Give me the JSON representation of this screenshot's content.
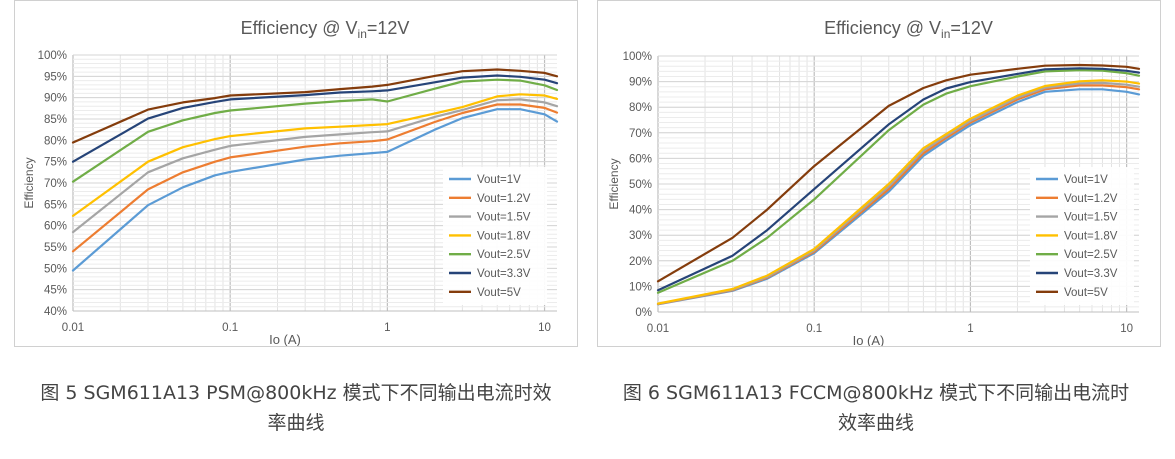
{
  "chart_data": [
    {
      "type": "line",
      "title": "Efficiency @ V",
      "title_subscript": "in",
      "title_suffix": "=12V",
      "xlabel": "Io (A)",
      "ylabel": "Efficiency",
      "x_scale": "log",
      "xlim": [
        0.01,
        12
      ],
      "ylim": [
        40,
        100
      ],
      "y_step": 5,
      "y_tick_suffix": "%",
      "x_tick_labels": [
        "0.01",
        "0.1",
        "1",
        "10"
      ],
      "grid": true,
      "legend_position": "bottom-right",
      "series": [
        {
          "name": "Vout=1V",
          "color": "#5b9bd5",
          "x": [
            0.01,
            0.03,
            0.05,
            0.08,
            0.1,
            0.3,
            0.5,
            0.8,
            1,
            2,
            3,
            5,
            7,
            10,
            12
          ],
          "y": [
            49.5,
            64.8,
            69,
            71.8,
            72.6,
            75.5,
            76.4,
            77,
            77.3,
            82.5,
            85.2,
            87.3,
            87.3,
            86.1,
            84.4
          ]
        },
        {
          "name": "Vout=1.2V",
          "color": "#ed7d31",
          "x": [
            0.01,
            0.03,
            0.05,
            0.08,
            0.1,
            0.3,
            0.5,
            0.8,
            1,
            2,
            3,
            5,
            7,
            10,
            12
          ],
          "y": [
            54,
            68.5,
            72.5,
            75,
            76,
            78.5,
            79.3,
            79.8,
            80.2,
            84.3,
            86.4,
            88.4,
            88.4,
            87.6,
            86.5
          ]
        },
        {
          "name": "Vout=1.5V",
          "color": "#a5a5a5",
          "x": [
            0.01,
            0.03,
            0.05,
            0.08,
            0.1,
            0.3,
            0.5,
            0.8,
            1,
            2,
            3,
            5,
            7,
            10,
            12
          ],
          "y": [
            58.5,
            72.5,
            75.8,
            77.8,
            78.7,
            80.8,
            81.4,
            81.9,
            82.1,
            85.5,
            87.1,
            89.4,
            89.6,
            88.9,
            88
          ]
        },
        {
          "name": "Vout=1.8V",
          "color": "#ffc000",
          "x": [
            0.01,
            0.03,
            0.05,
            0.08,
            0.1,
            0.3,
            0.5,
            0.8,
            1,
            2,
            3,
            5,
            7,
            10,
            12
          ],
          "y": [
            62.3,
            75,
            78.4,
            80.3,
            81,
            82.8,
            83.2,
            83.6,
            83.8,
            86.3,
            87.8,
            90.3,
            90.8,
            90.5,
            89.7
          ]
        },
        {
          "name": "Vout=2.5V",
          "color": "#70ad47",
          "x": [
            0.01,
            0.03,
            0.05,
            0.08,
            0.1,
            0.3,
            0.5,
            0.8,
            1,
            2,
            3,
            5,
            7,
            10,
            12
          ],
          "y": [
            70.3,
            82,
            84.7,
            86.4,
            87,
            88.6,
            89.2,
            89.6,
            89.1,
            92.1,
            93.8,
            94.2,
            94,
            92.9,
            91.8
          ]
        },
        {
          "name": "Vout=3.3V",
          "color": "#264478",
          "x": [
            0.01,
            0.03,
            0.05,
            0.08,
            0.1,
            0.3,
            0.5,
            0.8,
            1,
            2,
            3,
            5,
            7,
            10,
            12
          ],
          "y": [
            75,
            85.1,
            87.6,
            89,
            89.6,
            90.6,
            91.2,
            91.5,
            91.7,
            93.6,
            94.7,
            95.2,
            94.9,
            94.2,
            93.4
          ]
        },
        {
          "name": "Vout=5V",
          "color": "#843c0c",
          "x": [
            0.01,
            0.03,
            0.05,
            0.08,
            0.1,
            0.3,
            0.5,
            0.8,
            1,
            2,
            3,
            5,
            7,
            10,
            12
          ],
          "y": [
            79.5,
            87.2,
            88.9,
            89.9,
            90.5,
            91.3,
            92,
            92.6,
            93,
            95.1,
            96.2,
            96.6,
            96.3,
            95.8,
            95
          ]
        }
      ]
    },
    {
      "type": "line",
      "title": "Efficiency @ V",
      "title_subscript": "in",
      "title_suffix": "=12V",
      "xlabel": "Io (A)",
      "ylabel": "Efficiency",
      "x_scale": "log",
      "xlim": [
        0.01,
        12
      ],
      "ylim": [
        0,
        100
      ],
      "y_step": 10,
      "y_tick_suffix": "%",
      "x_tick_labels": [
        "0.01",
        "0.1",
        "1",
        "10"
      ],
      "grid": true,
      "legend_position": "bottom-right",
      "series": [
        {
          "name": "Vout=1V",
          "color": "#5b9bd5",
          "x": [
            0.01,
            0.03,
            0.05,
            0.1,
            0.3,
            0.5,
            0.7,
            1,
            2,
            3,
            5,
            7,
            10,
            12
          ],
          "y": [
            3,
            8.3,
            13,
            23,
            47,
            61,
            67,
            73,
            82,
            86,
            87,
            87,
            86,
            85
          ]
        },
        {
          "name": "Vout=1.2V",
          "color": "#ed7d31",
          "x": [
            0.01,
            0.03,
            0.05,
            0.1,
            0.3,
            0.5,
            0.7,
            1,
            2,
            3,
            5,
            7,
            10,
            12
          ],
          "y": [
            3.1,
            8.5,
            13.4,
            23.5,
            48,
            62,
            68,
            74,
            83,
            87,
            88.5,
            88.5,
            87.8,
            87
          ]
        },
        {
          "name": "Vout=1.5V",
          "color": "#a5a5a5",
          "x": [
            0.01,
            0.03,
            0.05,
            0.1,
            0.3,
            0.5,
            0.7,
            1,
            2,
            3,
            5,
            7,
            10,
            12
          ],
          "y": [
            3.2,
            8.7,
            13.7,
            24,
            49,
            63,
            68.8,
            74.6,
            83.7,
            87.6,
            89.3,
            89.5,
            88.8,
            88
          ]
        },
        {
          "name": "Vout=1.8V",
          "color": "#ffc000",
          "x": [
            0.01,
            0.03,
            0.05,
            0.1,
            0.3,
            0.5,
            0.7,
            1,
            2,
            3,
            5,
            7,
            10,
            12
          ],
          "y": [
            3.3,
            9,
            14.2,
            24.6,
            50,
            64,
            69.5,
            75.5,
            84.5,
            88.3,
            90.1,
            90.5,
            90,
            89.2
          ]
        },
        {
          "name": "Vout=2.5V",
          "color": "#70ad47",
          "x": [
            0.01,
            0.03,
            0.05,
            0.1,
            0.3,
            0.5,
            0.7,
            1,
            2,
            3,
            5,
            7,
            10,
            12
          ],
          "y": [
            7.5,
            20,
            29,
            44,
            71,
            81,
            85.3,
            88.2,
            92,
            94,
            94.5,
            94.3,
            93.3,
            92.3
          ]
        },
        {
          "name": "Vout=3.3V",
          "color": "#264478",
          "x": [
            0.01,
            0.03,
            0.05,
            0.1,
            0.3,
            0.5,
            0.7,
            1,
            2,
            3,
            5,
            7,
            10,
            12
          ],
          "y": [
            8.5,
            22,
            32,
            48,
            73.3,
            83,
            87.3,
            89.8,
            93,
            94.8,
            95.2,
            95,
            94.2,
            93.5
          ]
        },
        {
          "name": "Vout=5V",
          "color": "#843c0c",
          "x": [
            0.01,
            0.03,
            0.05,
            0.1,
            0.3,
            0.5,
            0.7,
            1,
            2,
            3,
            5,
            7,
            10,
            12
          ],
          "y": [
            12,
            29,
            40,
            57,
            80.5,
            87.5,
            90.5,
            92.7,
            95,
            96.2,
            96.5,
            96.3,
            95.8,
            95
          ]
        }
      ]
    }
  ],
  "captions": [
    {
      "line1": "图 5 SGM611A13 PSM@800kHz 模式下不同输出电流时效",
      "line2": "率曲线"
    },
    {
      "line1": "图 6 SGM611A13 FCCM@800kHz 模式下不同输出电流时",
      "line2": "效率曲线"
    }
  ]
}
